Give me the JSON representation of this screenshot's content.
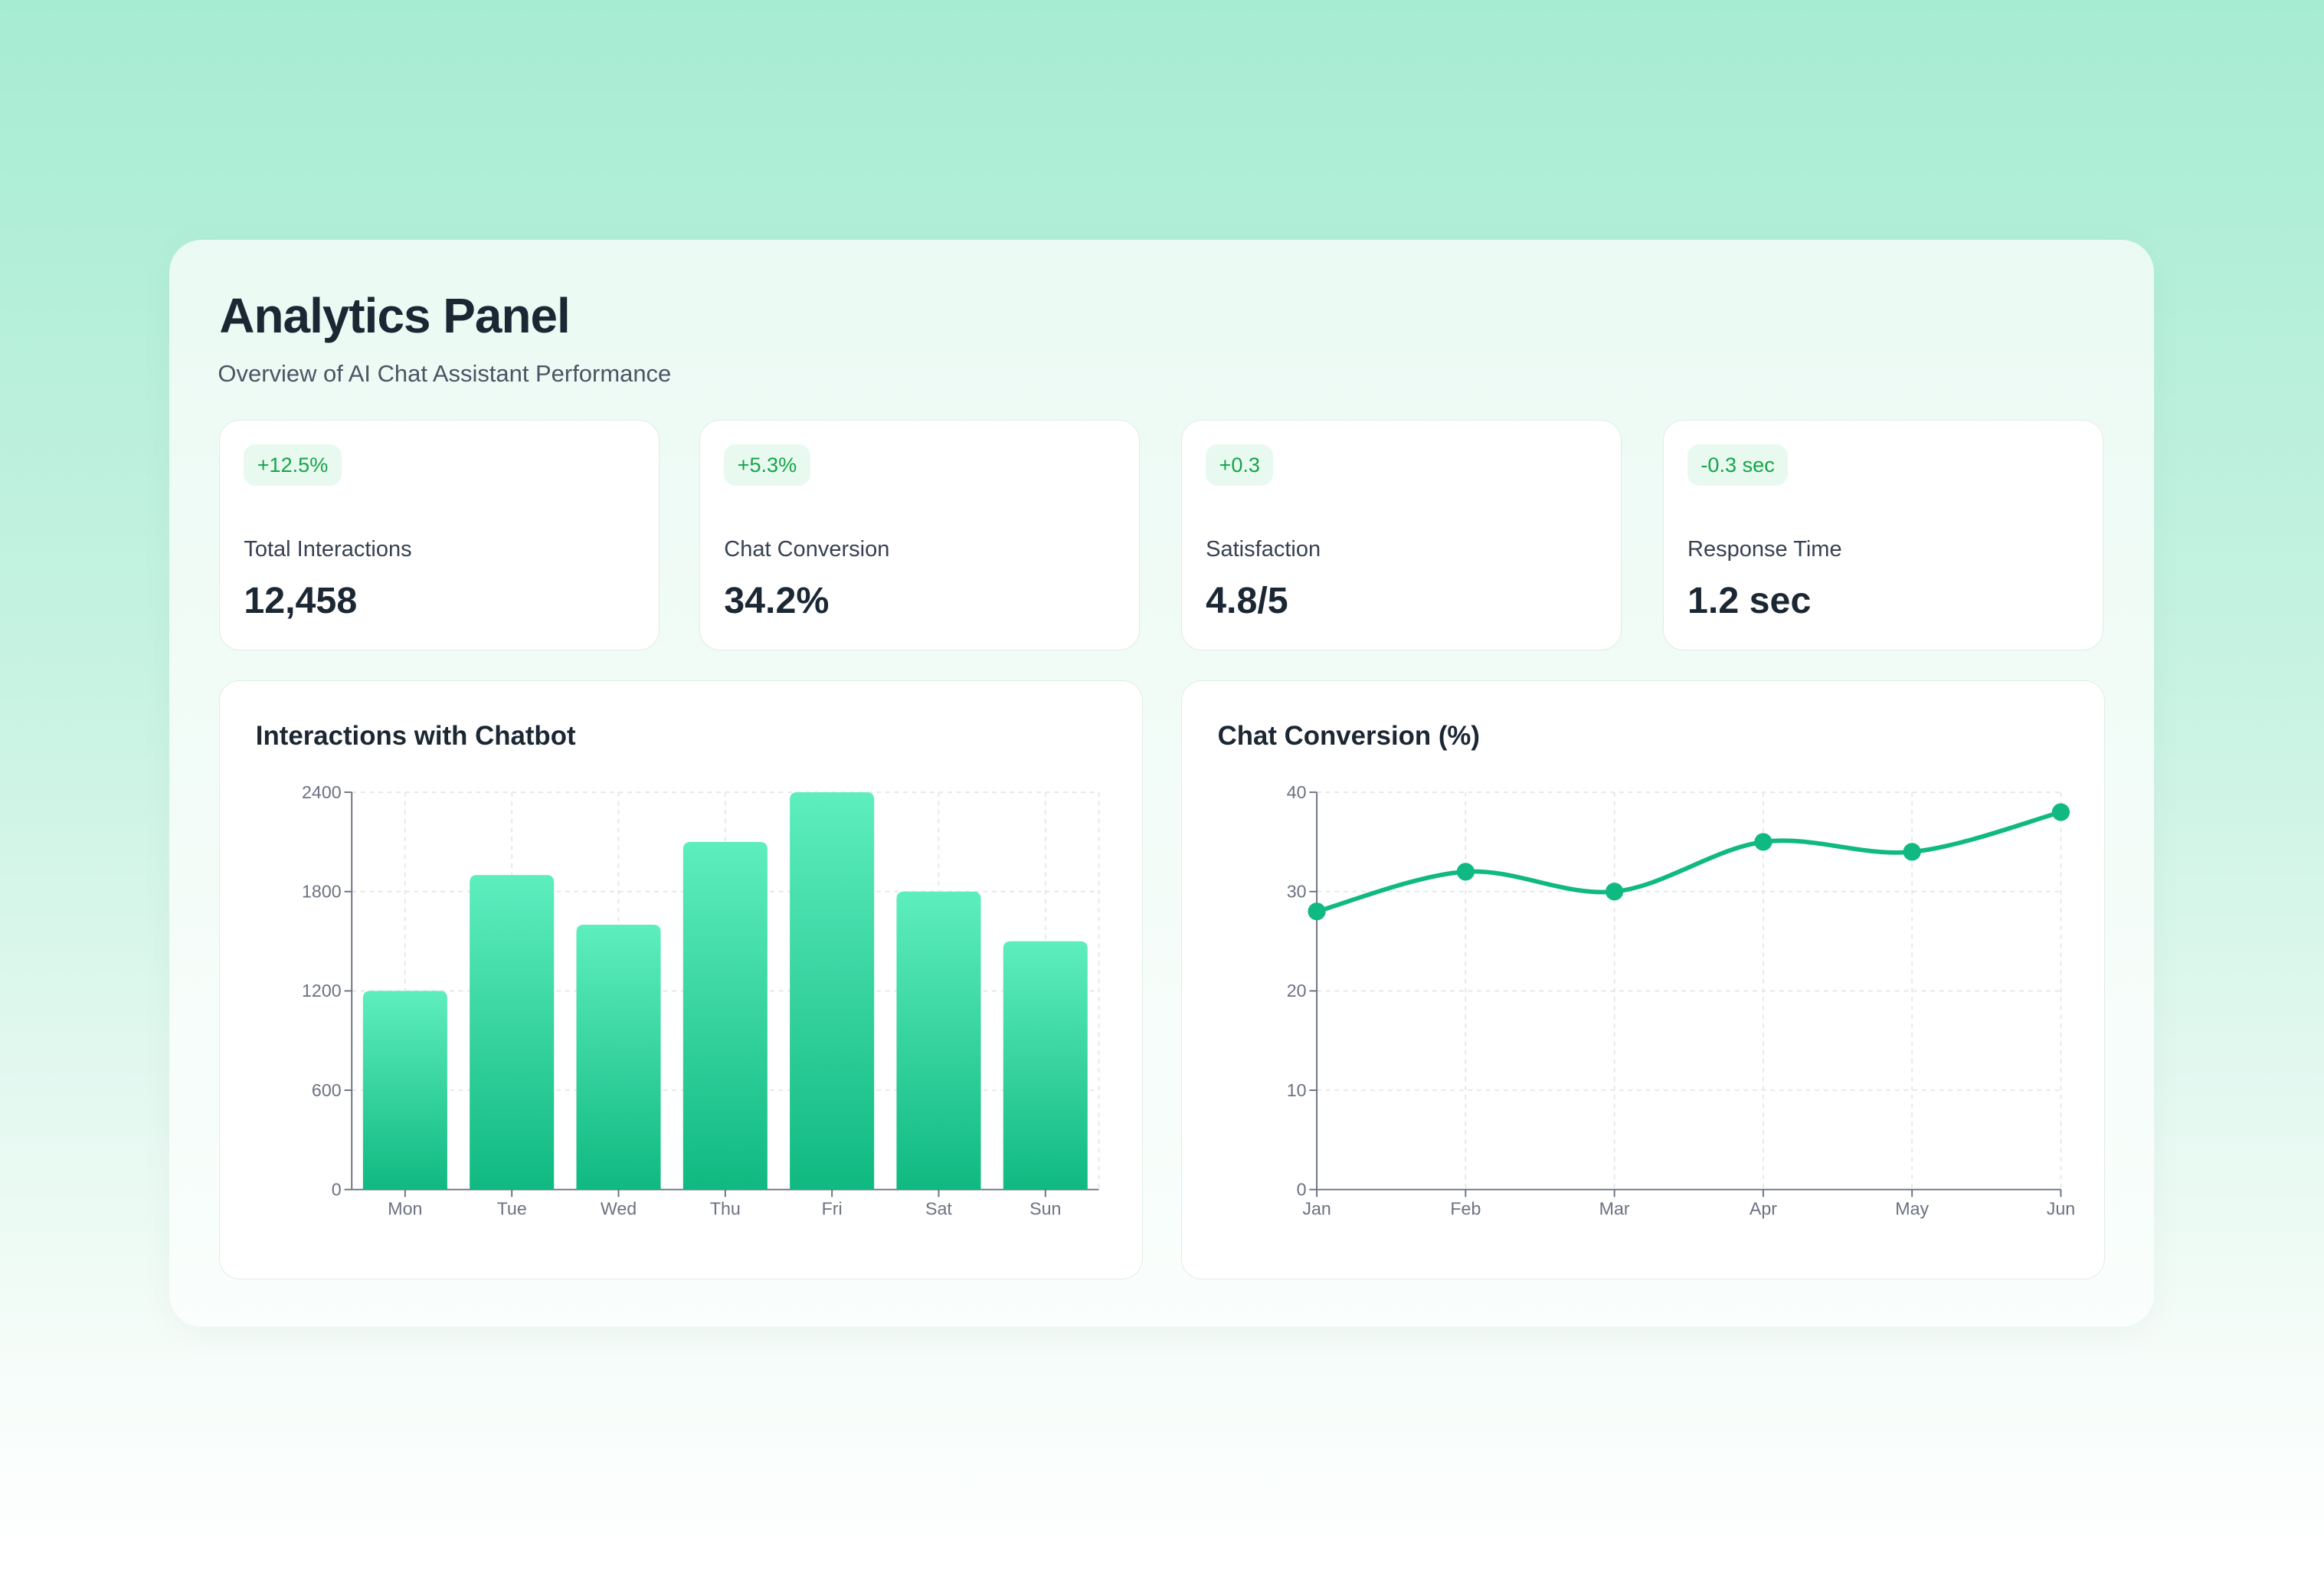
{
  "header": {
    "title": "Analytics Panel",
    "subtitle": "Overview of AI Chat Assistant Performance"
  },
  "stats": [
    {
      "badge": "+12.5%",
      "label": "Total Interactions",
      "value": "12,458"
    },
    {
      "badge": "+5.3%",
      "label": "Chat Conversion",
      "value": "34.2%"
    },
    {
      "badge": "+0.3",
      "label": "Satisfaction",
      "value": "4.8/5"
    },
    {
      "badge": "-0.3 sec",
      "label": "Response Time",
      "value": "1.2 sec"
    }
  ],
  "colors": {
    "accent": "#10b981",
    "bar_top": "#5eeebe",
    "bar_bottom": "#10b981",
    "badge_text": "#16a34a",
    "badge_bg": "#e8faef"
  },
  "chart_data": [
    {
      "type": "bar",
      "title": "Interactions with Chatbot",
      "categories": [
        "Mon",
        "Tue",
        "Wed",
        "Thu",
        "Fri",
        "Sat",
        "Sun"
      ],
      "values": [
        1200,
        1900,
        1600,
        2100,
        2400,
        1800,
        1500
      ],
      "ylim": [
        0,
        2400
      ],
      "yticks": [
        "0",
        "600",
        "1200",
        "1800",
        "2400"
      ],
      "grid": true
    },
    {
      "type": "line",
      "title": "Chat Conversion (%)",
      "categories": [
        "Jan",
        "Feb",
        "Mar",
        "Apr",
        "May",
        "Jun"
      ],
      "values": [
        28,
        32,
        30,
        35,
        34,
        38
      ],
      "ylim": [
        0,
        40
      ],
      "yticks": [
        "0",
        "10",
        "20",
        "30",
        "40"
      ],
      "grid": true
    }
  ]
}
